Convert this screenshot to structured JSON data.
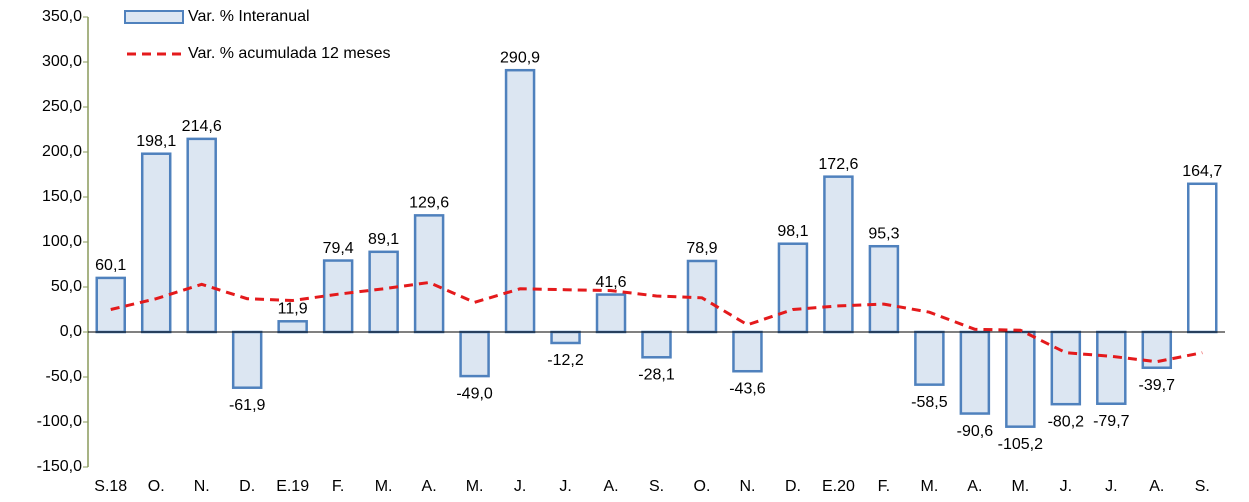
{
  "chart_data": {
    "type": "bar-line",
    "categories": [
      "S.18",
      "O.",
      "N.",
      "D.",
      "E.19",
      "F.",
      "M.",
      "A.",
      "M.",
      "J.",
      "J.",
      "A.",
      "S.",
      "O.",
      "N.",
      "D.",
      "E.20",
      "F.",
      "M.",
      "A.",
      "M.",
      "J.",
      "J.",
      "A.",
      "S."
    ],
    "series": [
      {
        "name": "Var. % Interanual",
        "type": "bar",
        "color": "#4f81bd",
        "colors": [
          "#dce6f2",
          "#dce6f2",
          "#dce6f2",
          "#dce6f2",
          "#dce6f2",
          "#dce6f2",
          "#dce6f2",
          "#dce6f2",
          "#dce6f2",
          "#dce6f2",
          "#dce6f2",
          "#dce6f2",
          "#dce6f2",
          "#dce6f2",
          "#dce6f2",
          "#dce6f2",
          "#dce6f2",
          "#dce6f2",
          "#dce6f2",
          "#dce6f2",
          "#dce6f2",
          "#dce6f2",
          "#dce6f2",
          "#dce6f2",
          "#ffffff"
        ],
        "values": [
          60.1,
          198.1,
          214.6,
          -61.9,
          11.9,
          79.4,
          89.1,
          129.6,
          -49.0,
          290.9,
          -12.2,
          41.6,
          -28.1,
          78.9,
          -43.6,
          98.1,
          172.6,
          95.3,
          -58.5,
          -90.6,
          -105.2,
          -80.2,
          -79.7,
          -39.7,
          164.7
        ],
        "value_labels": [
          "60,1",
          "198,1",
          "214,6",
          "-61,9",
          "11,9",
          "79,4",
          "89,1",
          "129,6",
          "-49,0",
          "290,9",
          "-12,2",
          "41,6",
          "-28,1",
          "78,9",
          "-43,6",
          "98,1",
          "172,6",
          "95,3",
          "-58,5",
          "-90,6",
          "-105,2",
          "-80,2",
          "-79,7",
          "-39,7",
          "164,7"
        ]
      },
      {
        "name": "Var. % acumulada 12 meses",
        "type": "line",
        "color": "#e41a1c",
        "dashed": true,
        "values": [
          25,
          37,
          53,
          37,
          35,
          42,
          48,
          55,
          33,
          48,
          47,
          46,
          40,
          38,
          8,
          25,
          29,
          31,
          22,
          3,
          2,
          -23,
          -27,
          -33,
          -23
        ]
      }
    ],
    "ylim": [
      -150,
      350
    ],
    "yticks": [
      {
        "value": -150,
        "label": "-150,0"
      },
      {
        "value": -100,
        "label": "-100,0"
      },
      {
        "value": -50,
        "label": "-50,0"
      },
      {
        "value": 0,
        "label": "0,0"
      },
      {
        "value": 50,
        "label": "50,0"
      },
      {
        "value": 100,
        "label": "100,0"
      },
      {
        "value": 150,
        "label": "150,0"
      },
      {
        "value": 200,
        "label": "200,0"
      },
      {
        "value": 250,
        "label": "250,0"
      },
      {
        "value": 300,
        "label": "300,0"
      },
      {
        "value": 350,
        "label": "350,0"
      }
    ],
    "grid": false,
    "legend": "top-left"
  }
}
